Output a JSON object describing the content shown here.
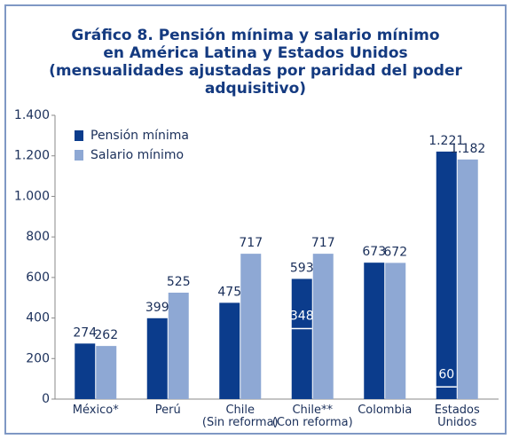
{
  "chart_data": {
    "type": "bar",
    "title": "Gráfico 8. Pensión mínima y salario mínimo\nen América Latina y Estados Unidos\n(mensualidades ajustadas por paridad del poder adquisitivo)",
    "categories": [
      "México*",
      "Perú",
      "Chile\n(Sin reforma)",
      "Chile**\n(Con reforma)",
      "Colombia",
      "Estados\nUnidos"
    ],
    "series": [
      {
        "name": "Pensión mínima",
        "color": "#0b3c8c",
        "values": [
          274,
          399,
          475,
          593,
          673,
          1221
        ],
        "value_labels": [
          "274",
          "399",
          "475",
          "593",
          "673",
          "1.221"
        ]
      },
      {
        "name": "Salario mínimo",
        "color": "#8ea8d4",
        "values": [
          262,
          525,
          717,
          717,
          672,
          1182
        ],
        "value_labels": [
          "262",
          "525",
          "717",
          "717",
          "672",
          "1.182"
        ]
      }
    ],
    "inner_marks": {
      "values": [
        null,
        null,
        null,
        348,
        null,
        60
      ]
    },
    "ylim": [
      0,
      1400
    ],
    "yticks": [
      0,
      200,
      400,
      600,
      800,
      {
        "value": 1000,
        "label": "1.000"
      },
      {
        "value": 1200,
        "label": "1.200"
      },
      {
        "value": 1400,
        "label": "1.400"
      }
    ],
    "legend": "upper left"
  }
}
